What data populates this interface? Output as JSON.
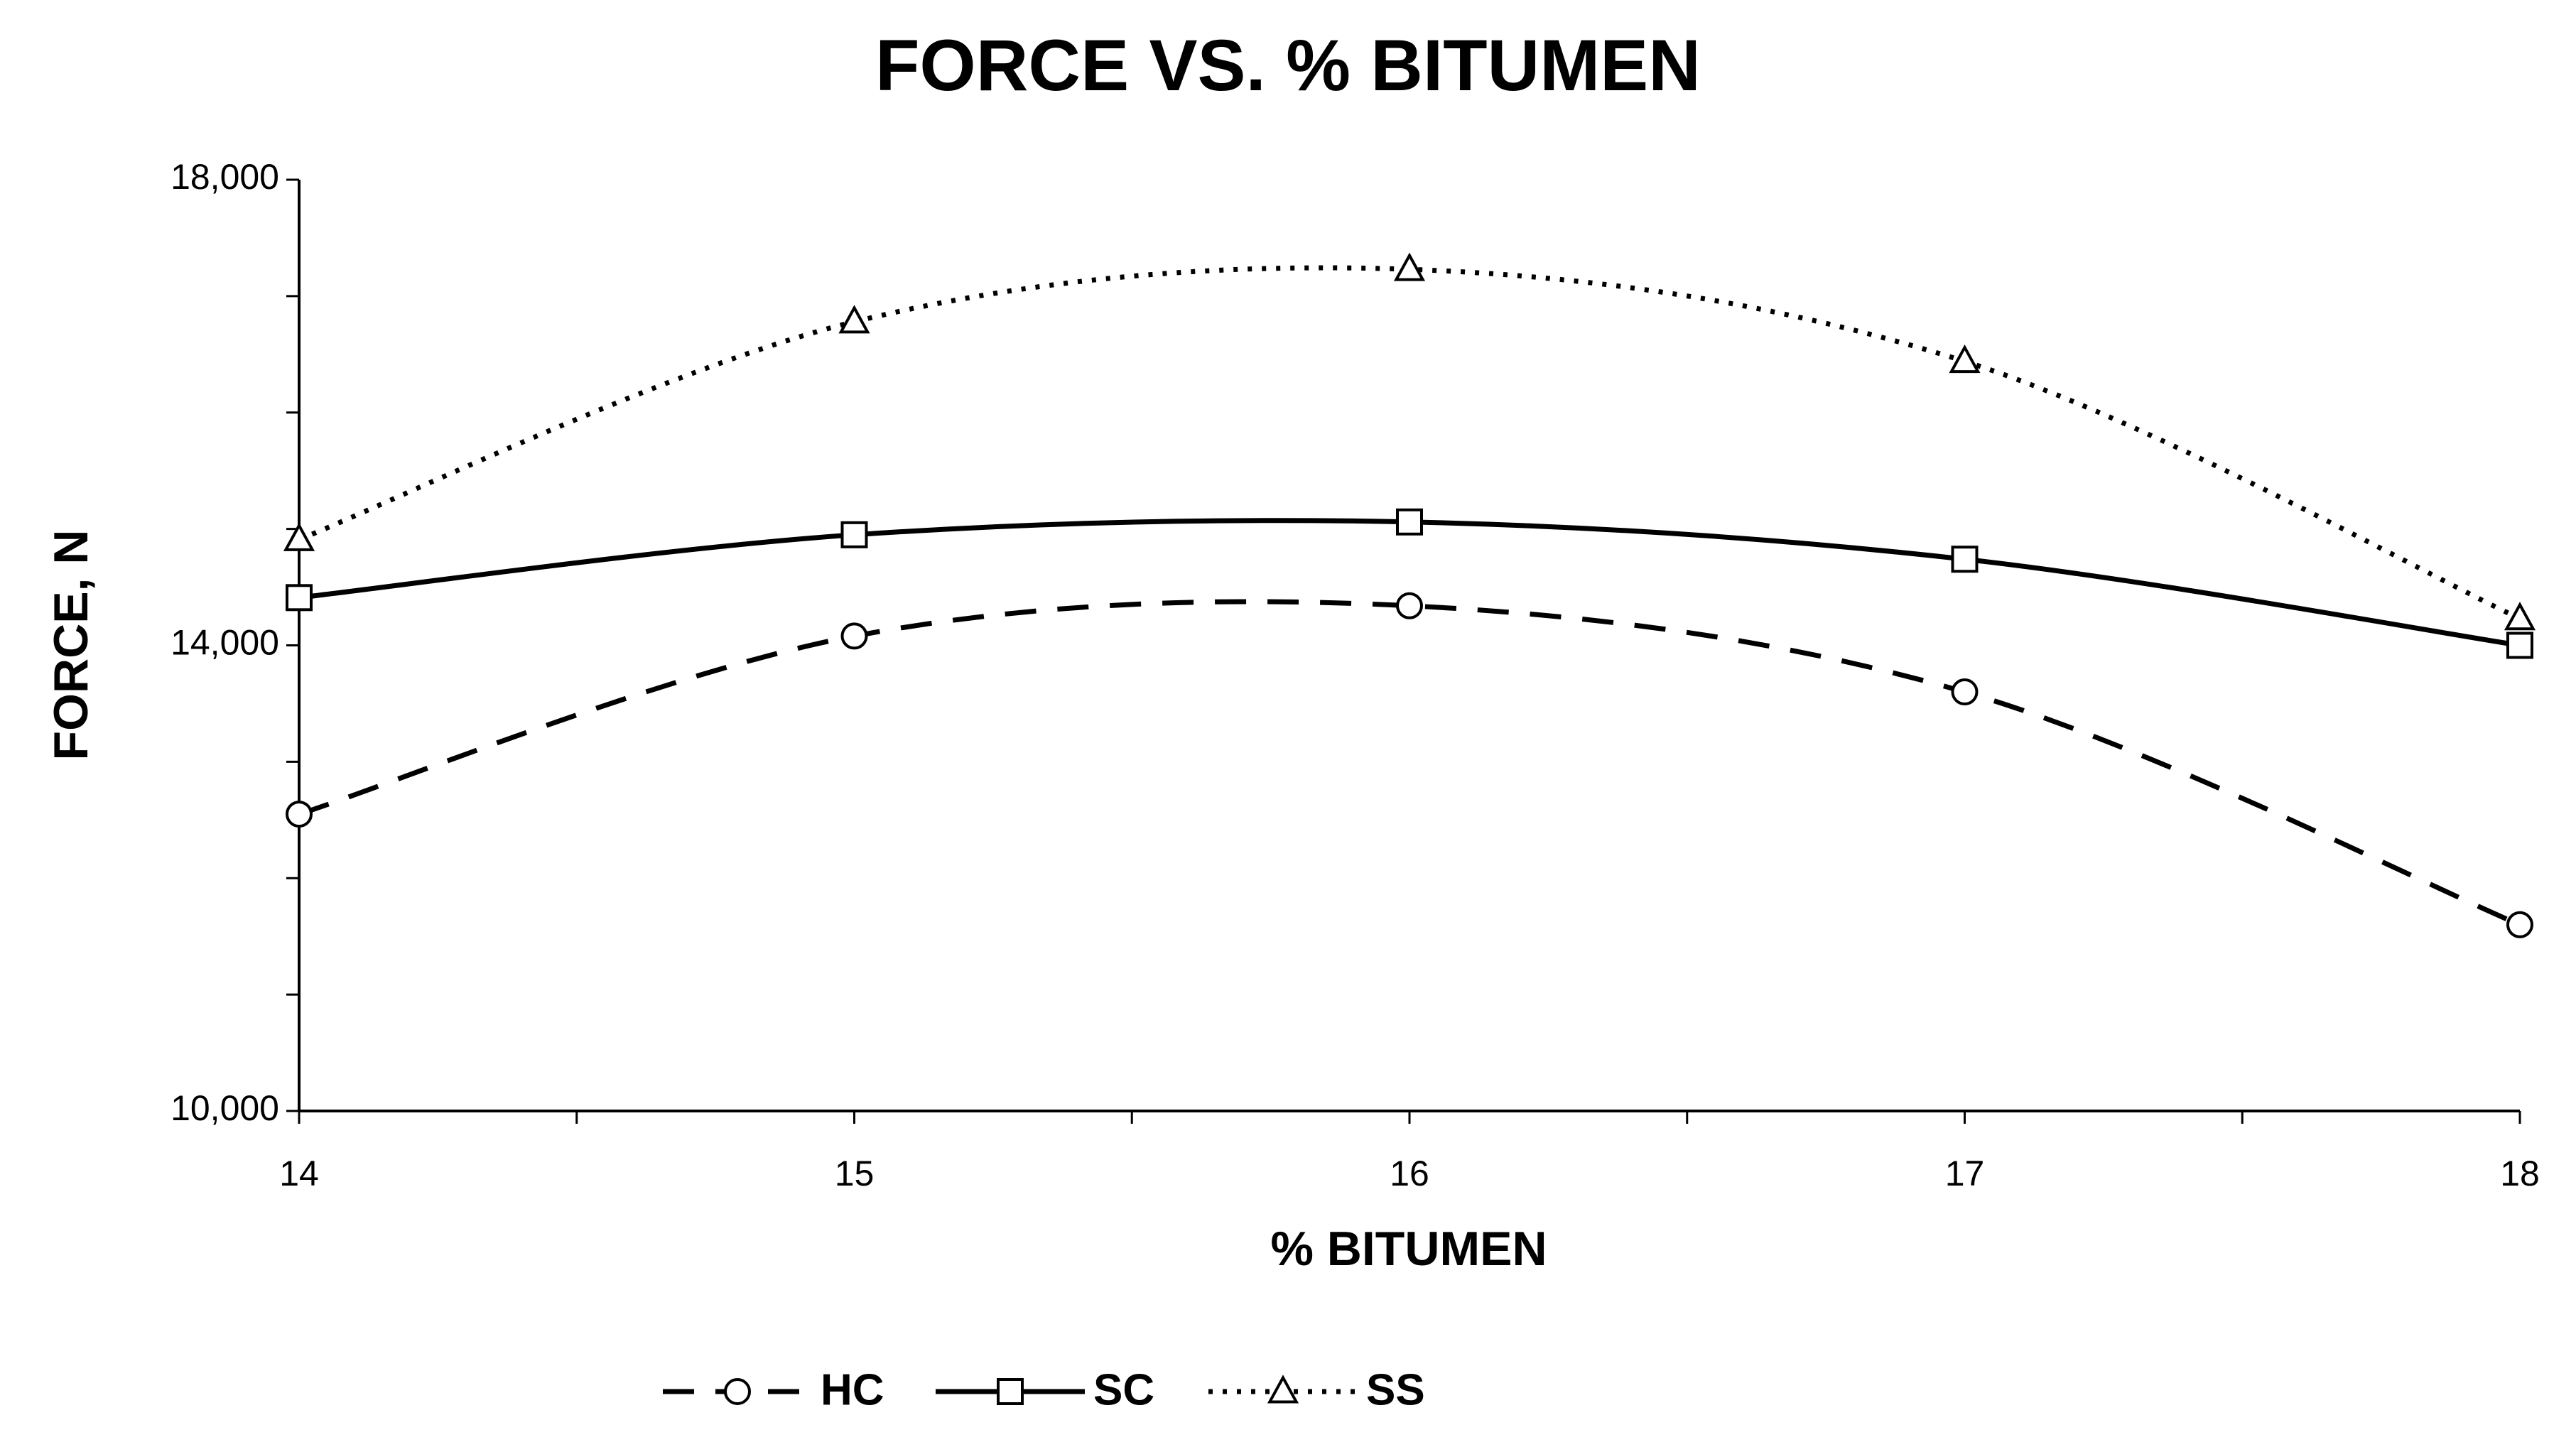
{
  "chart_data": {
    "type": "line",
    "title": "FORCE VS. % BITUMEN",
    "x_label": "% BITUMEN",
    "y_label": "FORCE, N",
    "x": [
      14,
      15,
      16,
      17,
      18
    ],
    "series": [
      {
        "name": "HC",
        "color": "#000000",
        "line_style": "dashed",
        "marker": "circle",
        "values": [
          12550,
          14080,
          14340,
          13600,
          11600
        ]
      },
      {
        "name": "SC",
        "color": "#000000",
        "line_style": "solid",
        "marker": "square",
        "values": [
          14410,
          14950,
          15060,
          14740,
          14000
        ]
      },
      {
        "name": "SS",
        "color": "#000000",
        "line_style": "dotted",
        "marker": "triangle",
        "values": [
          14910,
          16780,
          17230,
          16440,
          14230
        ]
      }
    ],
    "smooth": true,
    "xlim": [
      14,
      18
    ],
    "xticks": [
      14,
      15,
      16,
      17,
      18
    ],
    "xminor_ticks": [
      14.5,
      15.5,
      16.5,
      17.5
    ],
    "ylim": [
      10000,
      18000
    ],
    "yticks": [
      {
        "value": 10000,
        "label": "10,000"
      },
      {
        "value": 14000,
        "label": "14,000"
      },
      {
        "value": 18000,
        "label": "18,000"
      }
    ],
    "yminor_ticks": [
      11000,
      12000,
      13000,
      15000,
      16000,
      17000
    ],
    "grid": false,
    "legend": "bottom"
  }
}
